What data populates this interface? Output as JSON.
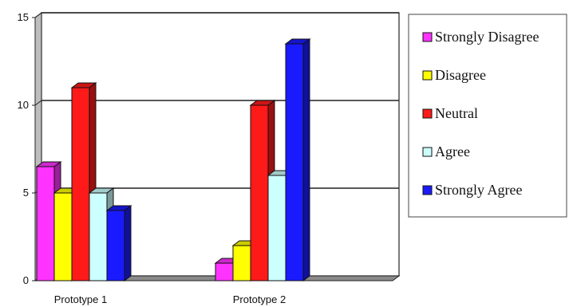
{
  "chart_data": {
    "type": "bar",
    "title": "",
    "xlabel": "",
    "ylabel": "",
    "ylim": [
      0,
      15
    ],
    "yticks": [
      0,
      5,
      10,
      15
    ],
    "grid": true,
    "legend_position": "right",
    "categories": [
      "Prototype 1",
      "Prototype 2"
    ],
    "series": [
      {
        "name": "Strongly Disagree",
        "color": "#ff33ff",
        "values": [
          6.5,
          1
        ]
      },
      {
        "name": "Disagree",
        "color": "#ffff00",
        "values": [
          5,
          2
        ]
      },
      {
        "name": "Neutral",
        "color": "#ff1a1a",
        "values": [
          11,
          10
        ]
      },
      {
        "name": "Agree",
        "color": "#ccffff",
        "values": [
          5,
          6
        ]
      },
      {
        "name": "Strongly Agree",
        "color": "#1a1aff",
        "values": [
          4,
          13.5
        ]
      }
    ]
  }
}
